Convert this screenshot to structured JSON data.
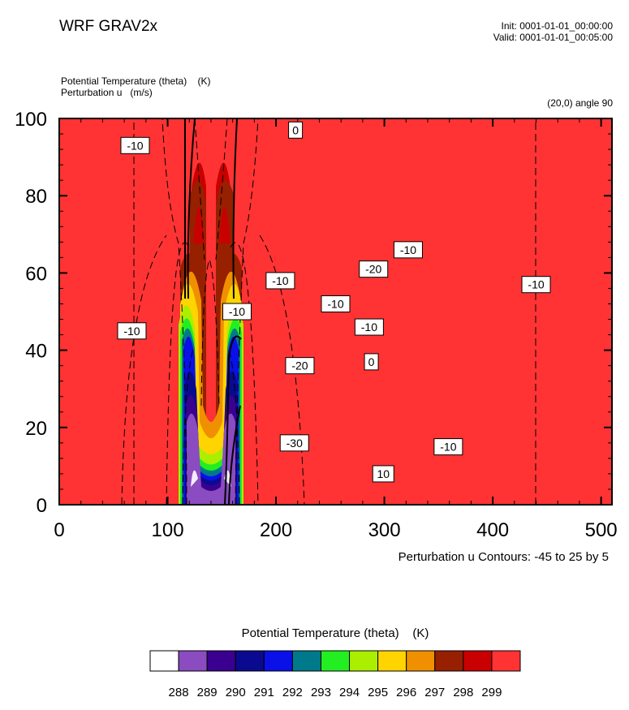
{
  "header": {
    "title": "WRF GRAV2x",
    "init": "Init: 0001-01-01_00:00:00",
    "valid": "Valid: 0001-01-01_00:05:00",
    "field_line_1": "Potential Temperature (theta)    (K)",
    "field_line_2": "Perturbation u   (m/s)",
    "cross_section": "(20,0) angle 90"
  },
  "footer": {
    "contour_note": "Perturbation u Contours: -45 to 25 by 5",
    "legend_title": "Potential Temperature (theta)    (K)"
  },
  "colors": {
    "background_fill": "#ff3333",
    "contour_line": "#000000"
  },
  "chart_data": {
    "type": "heatmap",
    "title": "",
    "xlabel": "",
    "ylabel": "",
    "xlim": [
      0,
      510
    ],
    "ylim": [
      0,
      100
    ],
    "xticks": [
      0,
      100,
      200,
      300,
      400,
      500
    ],
    "yticks": [
      0,
      20,
      40,
      60,
      80,
      100
    ],
    "xtick_labels": [
      "0",
      "100",
      "200",
      "300",
      "400",
      "500"
    ],
    "ytick_labels": [
      "0",
      "20",
      "40",
      "60",
      "80",
      "100"
    ],
    "colorbar": {
      "levels": [
        "288",
        "289",
        "290",
        "291",
        "292",
        "293",
        "294",
        "295",
        "296",
        "297",
        "298",
        "299"
      ],
      "colors": [
        "#ffffff",
        "#8a4cc0",
        "#3a0090",
        "#0a0a90",
        "#0a10e8",
        "#007a8a",
        "#22ee22",
        "#aaee00",
        "#ffd400",
        "#f09000",
        "#962000",
        "#c80000",
        "#ff3333"
      ]
    },
    "contour_labels": [
      {
        "text": "0",
        "x": 218,
        "y": 97
      },
      {
        "text": "-10",
        "x": 70,
        "y": 93
      },
      {
        "text": "-10",
        "x": 67,
        "y": 45
      },
      {
        "text": "-10",
        "x": 164,
        "y": 50
      },
      {
        "text": "-10",
        "x": 204,
        "y": 58
      },
      {
        "text": "-20",
        "x": 290,
        "y": 61
      },
      {
        "text": "-10",
        "x": 322,
        "y": 66
      },
      {
        "text": "-10",
        "x": 440,
        "y": 57
      },
      {
        "text": "-10",
        "x": 255,
        "y": 52
      },
      {
        "text": "-10",
        "x": 286,
        "y": 46
      },
      {
        "text": "-20",
        "x": 222,
        "y": 36
      },
      {
        "text": "0",
        "x": 288,
        "y": 37
      },
      {
        "text": "-30",
        "x": 217,
        "y": 16
      },
      {
        "text": "-10",
        "x": 359,
        "y": 15
      },
      {
        "text": "10",
        "x": 299,
        "y": 8
      }
    ]
  }
}
